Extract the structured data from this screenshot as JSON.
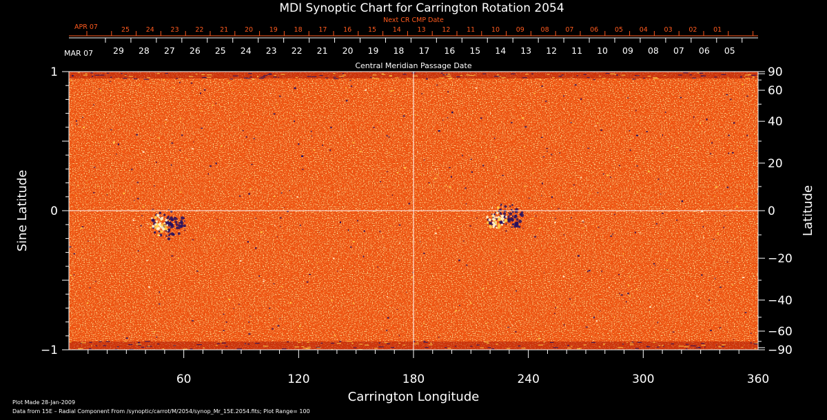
{
  "chart_data": {
    "type": "heatmap",
    "title": "MDI Synoptic Chart for Carrington Rotation 2054",
    "xlabel": "Carrington Longitude",
    "ylabel_left": "Sine Latitude",
    "ylabel_right": "Latitude",
    "xlim": [
      0,
      360
    ],
    "ylim": [
      -1,
      1
    ],
    "x_ticks": [
      60,
      120,
      180,
      240,
      300,
      360
    ],
    "y_ticks_left": [
      {
        "value": 1,
        "label": "1"
      },
      {
        "value": 0,
        "label": "0"
      },
      {
        "value": -1,
        "label": "−1"
      }
    ],
    "y_ticks_right": [
      {
        "value": 90,
        "label": "90"
      },
      {
        "value": 60,
        "label": "60"
      },
      {
        "value": 40,
        "label": "40"
      },
      {
        "value": 20,
        "label": "20"
      },
      {
        "value": 0,
        "label": "0"
      },
      {
        "value": -20,
        "label": "−20"
      },
      {
        "value": -40,
        "label": "−40"
      },
      {
        "value": -60,
        "label": "−60"
      },
      {
        "value": -90,
        "label": "−90"
      }
    ],
    "top_axis_next": {
      "title": "Next CR CMP Date",
      "month_label": "APR 07",
      "color": "#ff5a1e",
      "day_labels": [
        "25",
        "24",
        "23",
        "22",
        "21",
        "20",
        "19",
        "18",
        "17",
        "16",
        "15",
        "14",
        "13",
        "12",
        "11",
        "10",
        "09",
        "08",
        "07",
        "06",
        "05",
        "04",
        "03",
        "02",
        "01"
      ]
    },
    "top_axis_current": {
      "title": "Central Meridian Passage Date",
      "month_label": "MAR 07",
      "color": "#ffffff",
      "day_labels": [
        "29",
        "28",
        "27",
        "26",
        "25",
        "24",
        "23",
        "22",
        "21",
        "20",
        "19",
        "18",
        "17",
        "16",
        "15",
        "14",
        "13",
        "12",
        "11",
        "10",
        "09",
        "08",
        "07",
        "06",
        "05"
      ]
    },
    "features": [
      {
        "type": "active region",
        "longitude": 50,
        "sine_latitude": -0.1
      },
      {
        "type": "active region",
        "longitude": 226,
        "sine_latitude": -0.05
      }
    ],
    "plot_range": 100,
    "reference_lines": {
      "longitude": 180,
      "sine_latitude": 0
    },
    "colors": {
      "background": "#000000",
      "map_base": "#f0520f",
      "map_dark": "#b01a06",
      "map_bright": "#ffd24a",
      "map_white": "#fff6d0",
      "negative": "#241060",
      "axis": "#ffffff",
      "next_axis": "#ff5a1e"
    }
  },
  "footer": {
    "plot_made": "Plot Made 28-Jan-2009",
    "source": "Data from 15E – Radial Component From /synoptic/carrot/M/2054/synop_Mr_15E.2054.fits; Plot Range=  100"
  }
}
